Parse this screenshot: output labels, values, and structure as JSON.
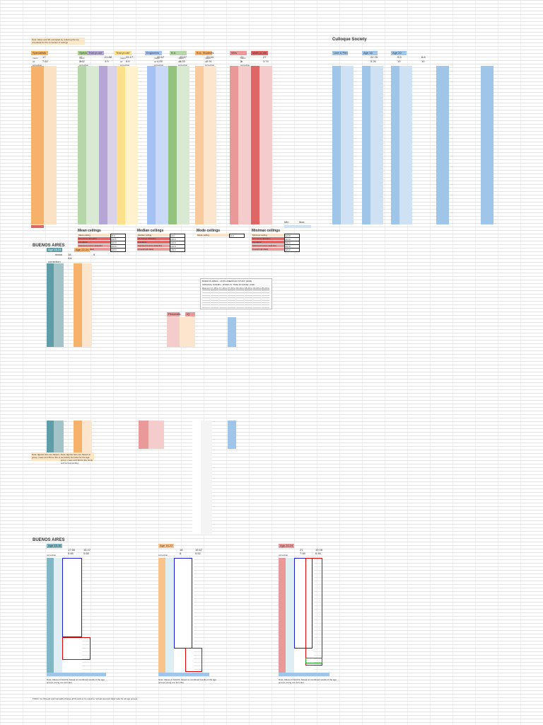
{
  "top_note": {
    "line1": "Note: Mean and SD estimated by reducing the top",
    "line2": "(overload) for the correction of ceilings"
  },
  "sections": {
    "culloque": "Culloque Society",
    "buenos_aires_1": "BUENOS AIRES",
    "buenos_aires_2": "BUENOS AIRES"
  },
  "tags": [
    {
      "label": "Specialists",
      "color": "#f3b65f"
    },
    {
      "label": "Specialists",
      "color": "#a8d08d"
    },
    {
      "label": "Trial yr-old",
      "color": "#b4a7d6"
    },
    {
      "label": "Trial yr-old",
      "color": "#ffe08a"
    },
    {
      "label": "Engineers",
      "color": "#a4c2f4"
    },
    {
      "label": "B.A.",
      "color": "#b6d7a8"
    },
    {
      "label": "B.A. Students",
      "color": "#f6b26b"
    },
    {
      "label": "Mills",
      "color": "#ea9999"
    },
    {
      "label": "Math yr-old",
      "color": "#e06666"
    },
    {
      "label": "Line & Pen",
      "color": "#9fc5e8"
    },
    {
      "label": "Age 18",
      "color": "#9fc5e8"
    },
    {
      "label": "Age 20",
      "color": "#9fc5e8"
    }
  ],
  "summary_headers": {
    "mean": "mean",
    "sd": "sd",
    "correction": "correction",
    "total": "total"
  },
  "summary_rows": {
    "means": [
      "17",
      "17",
      "21.88",
      "22.17",
      "20.57",
      "20.57",
      "23.44",
      "21",
      "27",
      "22.75",
      "9.5",
      "8.8"
    ],
    "sds": [
      "7.62",
      "7.62",
      "3.9",
      "6.6",
      "4.05",
      "6.03",
      "2.91",
      "3",
      "3.74",
      "5.26",
      "10",
      "10"
    ]
  },
  "ceilings": [
    {
      "title": "Mean ceilings",
      "rows": [
        "Mean ceiling",
        "All (minus defaults)",
        "Literature",
        "Selected (minus defaults)",
        "Overall (all data)"
      ],
      "values": [
        "18.2",
        "130.5",
        "140.0",
        "132.6",
        "138.3"
      ]
    },
    {
      "title": "Median ceilings",
      "rows": [
        "Median ceiling",
        "All (minus defaults)",
        "Literature",
        "Selected (minus defaults)",
        "Overall (all data)"
      ],
      "values": [
        "16.0",
        "130.0",
        "140.0",
        "132.0",
        "135.0"
      ]
    },
    {
      "title": "Mode ceilings",
      "rows": [
        "Mode ceiling"
      ],
      "values": [
        "14.0"
      ]
    },
    {
      "title": "Min/max ceilings",
      "rows": [
        "Min/max ceiling",
        "All (minus defaults)",
        "Literature",
        "Selected (minus defaults)",
        "Overall (all data)"
      ],
      "values": [
        "124.0",
        "144.0",
        "150.0",
        "142.0",
        "145.0"
      ]
    }
  ],
  "ceilings_extra": {
    "min": "Min",
    "max": "Max",
    "footer": "Note: Above using (median)"
  },
  "ba1": {
    "age": "Age 18-24",
    "age2": "Age 22-24",
    "mean": "mean",
    "mean_val": "18",
    "sd_val": "4.6",
    "sd2": "9",
    "correction": "correction",
    "percentile": "Percentile",
    "iq": "IQ"
  },
  "gray_panel": {
    "title": "BUENOS AIRES - LATIN AMERICAN STUDY (2006)",
    "subtitle": "ORIGINAL NORMS - WORD IS 'TIME TO RAISE' (T2R)",
    "headers": [
      "Raw score",
      "17-18 totals",
      "17-19 totals",
      "17-20 totals",
      "18-19 totals",
      "18-20 totals",
      "19-20 totals",
      "20-24 totals"
    ]
  },
  "mid_note": {
    "text": "Note: figures here are based on sensitivity formulas for the age group, mean and SD for the study and corresponding."
  },
  "ba2": {
    "groups": [
      {
        "age": "Age 15-16",
        "mean1": "17.66",
        "mean2": "16.47",
        "sd1": "5.66",
        "sd2": "5.68",
        "color": "#7fb7c4"
      },
      {
        "age": "Age 16-22",
        "mean1": "16",
        "mean2": "16.67",
        "sd1": "8",
        "sd2": "5.52",
        "color": "#f9c48c"
      },
      {
        "age": "Age 20-24",
        "mean1": "21",
        "mean2": "19.08",
        "sd1": "7.48",
        "sd2": "6.46",
        "color": "#ea9999"
      }
    ],
    "col_labels": {
      "mean": "mean",
      "sd": "sd",
      "correction": "correction",
      "scaled": "scaled"
    },
    "footer_note": "Note: Values in bold IS; based on combined results of the age groups (using one formula).",
    "todo": "TODO: Go through and manually change all IS cells to be equal to \"actual reported data\" take for all age groups."
  }
}
